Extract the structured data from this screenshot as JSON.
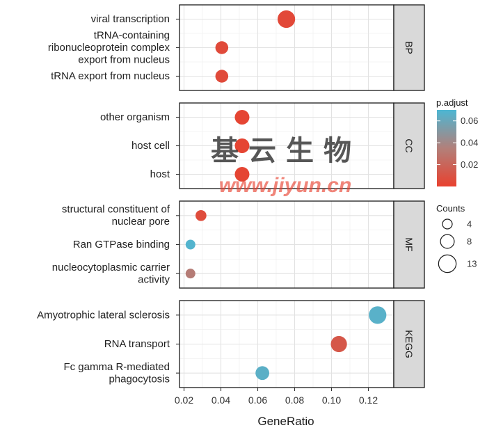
{
  "chart_data": {
    "type": "scatter",
    "title": "",
    "xlabel": "GeneRatio",
    "ylabel": "",
    "xlim": [
      0.02,
      0.13
    ],
    "x_ticks": [
      "0.02",
      "0.04",
      "0.06",
      "0.08",
      "0.10",
      "0.12"
    ],
    "x_tick_values": [
      0.02,
      0.04,
      0.06,
      0.08,
      0.1,
      0.12
    ],
    "grid": true,
    "legend_position": "right",
    "color_scale": {
      "title": "p.adjust",
      "min": 0.0,
      "max": 0.07,
      "ticks": [
        "0.06",
        "0.04",
        "0.02"
      ],
      "tick_values": [
        0.06,
        0.04,
        0.02
      ],
      "low_color": "#e8412f",
      "high_color": "#4db7d3"
    },
    "size_legend": {
      "title": "Counts",
      "entries": [
        {
          "label": "4",
          "value": 4
        },
        {
          "label": "8",
          "value": 8
        },
        {
          "label": "13",
          "value": 13
        }
      ]
    },
    "panels": [
      {
        "facet": "BP",
        "categories": [
          {
            "lines": [
              "viral transcription"
            ],
            "gene_ratio": 0.0755,
            "count": 13,
            "p_adjust": 0.004
          },
          {
            "lines": [
              "tRNA-containing",
              "ribonucleoprotein complex",
              "export from nucleus"
            ],
            "gene_ratio": 0.0405,
            "count": 7,
            "p_adjust": 0.005
          },
          {
            "lines": [
              "tRNA export from nucleus"
            ],
            "gene_ratio": 0.0405,
            "count": 7,
            "p_adjust": 0.005
          }
        ]
      },
      {
        "facet": "CC",
        "categories": [
          {
            "lines": [
              "other organism"
            ],
            "gene_ratio": 0.0515,
            "count": 9,
            "p_adjust": 0.002
          },
          {
            "lines": [
              "host cell"
            ],
            "gene_ratio": 0.0515,
            "count": 9,
            "p_adjust": 0.002
          },
          {
            "lines": [
              "host"
            ],
            "gene_ratio": 0.0515,
            "count": 9,
            "p_adjust": 0.002
          }
        ]
      },
      {
        "facet": "MF",
        "categories": [
          {
            "lines": [
              "structural constituent of",
              "nuclear pore"
            ],
            "gene_ratio": 0.0292,
            "count": 5,
            "p_adjust": 0.006
          },
          {
            "lines": [
              "Ran GTPase binding"
            ],
            "gene_ratio": 0.0235,
            "count": 4,
            "p_adjust": 0.068
          },
          {
            "lines": [
              "nucleocytoplasmic carrier",
              "activity"
            ],
            "gene_ratio": 0.0235,
            "count": 4,
            "p_adjust": 0.033
          }
        ]
      },
      {
        "facet": "KEGG",
        "categories": [
          {
            "lines": [
              "Amyotrophic lateral sclerosis"
            ],
            "gene_ratio": 0.125,
            "count": 13,
            "p_adjust": 0.066
          },
          {
            "lines": [
              "RNA transport"
            ],
            "gene_ratio": 0.104,
            "count": 11,
            "p_adjust": 0.012
          },
          {
            "lines": [
              "Fc gamma R-mediated",
              "phagocytosis"
            ],
            "gene_ratio": 0.0625,
            "count": 8,
            "p_adjust": 0.065
          }
        ]
      }
    ]
  },
  "watermark": {
    "chinese": "基云生物",
    "url": "www.jiyun.cn"
  }
}
